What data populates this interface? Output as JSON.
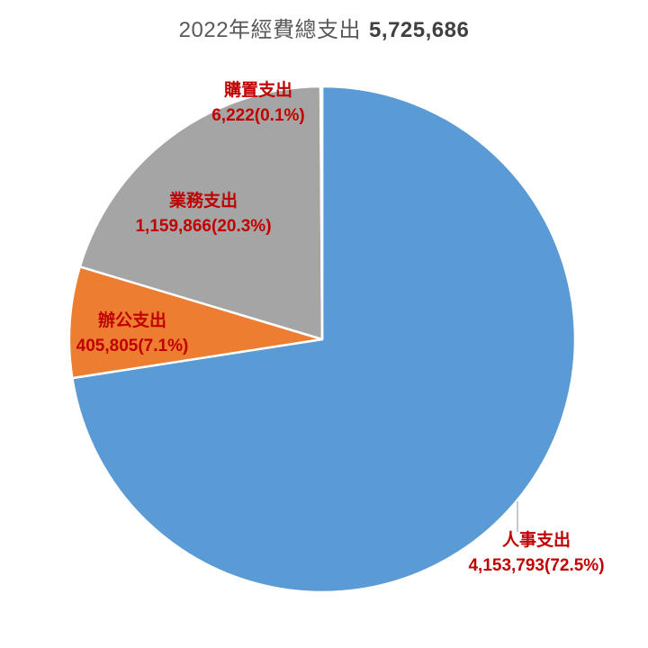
{
  "chart_data": {
    "type": "pie",
    "title_text": "2022年經費總支出",
    "title_value": "5,725,686",
    "total": 5725686,
    "start_angle_deg": 0,
    "direction": "clockwise",
    "legend": "none",
    "background_color": "#FFFFFF",
    "label_color": "#C00000",
    "slice_border_color": "#FFFFFF",
    "leader_line_color": "#A6A6A6",
    "slices": [
      {
        "label": "人事支出",
        "value": 4153793,
        "pct": 72.5,
        "display": "4,153,793(72.5%)",
        "color": "#5B9BD5"
      },
      {
        "label": "辦公支出",
        "value": 405805,
        "pct": 7.1,
        "display": "405,805(7.1%)",
        "color": "#ED7D31"
      },
      {
        "label": "業務支出",
        "value": 1159866,
        "pct": 20.3,
        "display": "1,159,866(20.3%)",
        "color": "#A5A5A5"
      },
      {
        "label": "購置支出",
        "value": 6222,
        "pct": 0.1,
        "display": "6,222(0.1%)",
        "color": "#FFC000"
      }
    ]
  }
}
